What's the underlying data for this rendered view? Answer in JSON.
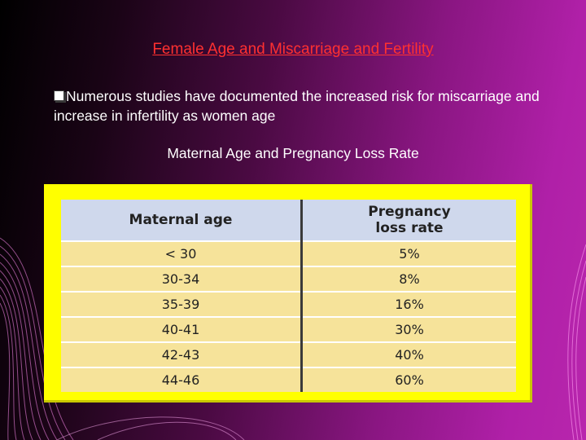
{
  "slide": {
    "title": "Female Age and Miscarriage and Fertility",
    "bullet_text": "Numerous studies have documented the increased risk for miscarriage and increase in infertility as  women age",
    "bullet_marker": "q",
    "subtitle": "Maternal Age and Pregnancy Loss Rate"
  },
  "table": {
    "headers": {
      "maternal_age": "Maternal age",
      "loss_rate_line1": "Pregnancy",
      "loss_rate_line2": "loss rate"
    },
    "rows": [
      {
        "age": "< 30",
        "rate": "5%"
      },
      {
        "age": "30-34",
        "rate": "8%"
      },
      {
        "age": "35-39",
        "rate": "16%"
      },
      {
        "age": "40-41",
        "rate": "30%"
      },
      {
        "age": "42-43",
        "rate": "40%"
      },
      {
        "age": "44-46",
        "rate": "60%"
      }
    ]
  },
  "colors": {
    "title": "#ff3030",
    "text": "#ffffff",
    "frame": "#ffff00",
    "header_fill": "#cfd8ec",
    "row_fill": "#f6e39a"
  }
}
